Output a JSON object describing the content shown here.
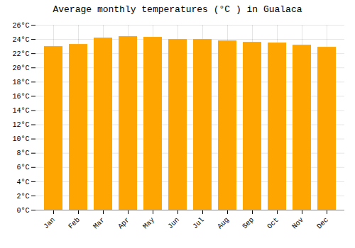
{
  "chart_data": {
    "type": "bar",
    "title": "Average monthly temperatures (°C ) in Gualaca",
    "categories": [
      "Jan",
      "Feb",
      "Mar",
      "Apr",
      "May",
      "Jun",
      "Jul",
      "Aug",
      "Sep",
      "Oct",
      "Nov",
      "Dec"
    ],
    "values": [
      23.0,
      23.3,
      24.2,
      24.4,
      24.3,
      24.0,
      24.0,
      23.8,
      23.6,
      23.5,
      23.2,
      22.9
    ],
    "color": "#FFA500",
    "ylim": [
      0,
      26
    ],
    "yticks": [
      {
        "value": 0,
        "label": "0°C"
      },
      {
        "value": 2,
        "label": "2°C"
      },
      {
        "value": 4,
        "label": "4°C"
      },
      {
        "value": 6,
        "label": "6°C"
      },
      {
        "value": 8,
        "label": "8°C"
      },
      {
        "value": 10,
        "label": "10°C"
      },
      {
        "value": 12,
        "label": "12°C"
      },
      {
        "value": 14,
        "label": "14°C"
      },
      {
        "value": 16,
        "label": "16°C"
      },
      {
        "value": 18,
        "label": "18°C"
      },
      {
        "value": 20,
        "label": "20°C"
      },
      {
        "value": 22,
        "label": "22°C"
      },
      {
        "value": 24,
        "label": "24°C"
      },
      {
        "value": 26,
        "label": "26°C"
      }
    ],
    "grid": true
  }
}
